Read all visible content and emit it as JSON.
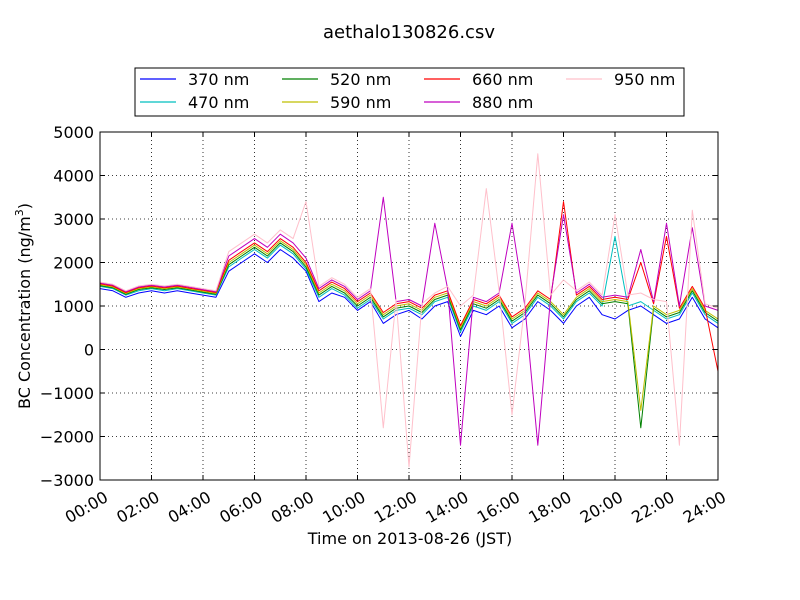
{
  "chart_data": {
    "type": "line",
    "title": "aethalo130826.csv",
    "xlabel": "Time on 2013-08-26 (JST)",
    "ylabel_main": "BC Concentration (ng/m",
    "ylabel_sup": "3",
    "ylabel_close": ")",
    "xlim": [
      "00:00",
      "24:00"
    ],
    "ylim": [
      -3000,
      5000
    ],
    "x_ticks": [
      "00:00",
      "02:00",
      "04:00",
      "06:00",
      "08:00",
      "10:00",
      "12:00",
      "14:00",
      "16:00",
      "18:00",
      "20:00",
      "22:00",
      "24:00"
    ],
    "y_ticks": [
      "−3000",
      "−2000",
      "−1000",
      "0",
      "1000",
      "2000",
      "3000",
      "4000",
      "5000"
    ],
    "grid": true,
    "legend_position": "top-center",
    "x_sample_hours": [
      0,
      0.5,
      1,
      1.5,
      2,
      2.5,
      3,
      3.5,
      4,
      4.5,
      5,
      5.5,
      6,
      6.5,
      7,
      7.5,
      8,
      8.5,
      9,
      9.5,
      10,
      10.5,
      11,
      11.5,
      12,
      12.5,
      13,
      13.5,
      14,
      14.5,
      15,
      15.5,
      16,
      16.5,
      17,
      17.5,
      18,
      18.5,
      19,
      19.5,
      20,
      20.5,
      21,
      21.5,
      22,
      22.5,
      23,
      23.5,
      24
    ],
    "series": [
      {
        "name": "370 nm",
        "color": "#0000ff",
        "values": [
          1400,
          1350,
          1200,
          1300,
          1350,
          1300,
          1350,
          1300,
          1250,
          1200,
          1800,
          2000,
          2200,
          2000,
          2300,
          2100,
          1800,
          1100,
          1300,
          1200,
          900,
          1100,
          600,
          800,
          900,
          700,
          1000,
          1100,
          300,
          900,
          800,
          1000,
          500,
          700,
          1100,
          900,
          600,
          1000,
          1200,
          800,
          700,
          900,
          1000,
          800,
          600,
          700,
          1200,
          700,
          500
        ]
      },
      {
        "name": "470 nm",
        "color": "#00bfbf",
        "values": [
          1450,
          1400,
          1250,
          1350,
          1400,
          1350,
          1400,
          1350,
          1300,
          1250,
          1900,
          2100,
          2300,
          2100,
          2400,
          2200,
          1850,
          1200,
          1400,
          1250,
          950,
          1150,
          700,
          900,
          950,
          800,
          1100,
          1200,
          400,
          1000,
          900,
          1100,
          600,
          800,
          1200,
          1000,
          700,
          1100,
          1300,
          1000,
          2600,
          1000,
          1100,
          900,
          700,
          800,
          1300,
          800,
          600
        ]
      },
      {
        "name": "520 nm",
        "color": "#008000",
        "values": [
          1470,
          1420,
          1270,
          1380,
          1420,
          1380,
          1420,
          1370,
          1320,
          1270,
          1950,
          2150,
          2350,
          2150,
          2450,
          2250,
          1900,
          1250,
          1450,
          1300,
          1000,
          1200,
          750,
          950,
          1000,
          850,
          1150,
          1250,
          450,
          1050,
          950,
          1150,
          650,
          850,
          1250,
          1050,
          750,
          1150,
          1350,
          1050,
          1100,
          1050,
          -1800,
          950,
          750,
          850,
          1350,
          850,
          650
        ]
      },
      {
        "name": "590 nm",
        "color": "#bfbf00",
        "values": [
          1490,
          1440,
          1290,
          1400,
          1440,
          1400,
          1440,
          1390,
          1340,
          1290,
          2000,
          2200,
          2400,
          2200,
          2500,
          2300,
          1950,
          1300,
          1500,
          1350,
          1050,
          1250,
          800,
          1000,
          1050,
          900,
          1200,
          1300,
          500,
          1100,
          1000,
          1200,
          700,
          900,
          1300,
          1100,
          800,
          1200,
          1400,
          1100,
          1150,
          1100,
          -1400,
          1000,
          800,
          900,
          1400,
          900,
          700
        ]
      },
      {
        "name": "660 nm",
        "color": "#ff0000",
        "values": [
          1510,
          1460,
          1310,
          1420,
          1460,
          1420,
          1460,
          1410,
          1360,
          1310,
          2050,
          2250,
          2450,
          2250,
          2550,
          2350,
          2000,
          1350,
          1550,
          1400,
          1100,
          1300,
          850,
          1050,
          1100,
          950,
          1250,
          1350,
          550,
          1150,
          1050,
          1250,
          750,
          950,
          1350,
          1150,
          3400,
          1250,
          1450,
          1150,
          1200,
          1150,
          2000,
          1050,
          2600,
          950,
          1450,
          950,
          -500
        ]
      },
      {
        "name": "880 nm",
        "color": "#bf00bf",
        "values": [
          1530,
          1480,
          1330,
          1440,
          1480,
          1440,
          1480,
          1430,
          1380,
          1330,
          2150,
          2350,
          2550,
          2350,
          2650,
          2450,
          2100,
          1400,
          1600,
          1450,
          1150,
          1350,
          3500,
          1100,
          1150,
          1000,
          2900,
          1400,
          -2200,
          1200,
          1100,
          1300,
          2900,
          1000,
          -2200,
          1200,
          3100,
          1300,
          1500,
          1200,
          1250,
          1200,
          2300,
          1100,
          2900,
          1000,
          2800,
          1000,
          900
        ]
      },
      {
        "name": "950 nm",
        "color": "#ffc0cb",
        "values": [
          1550,
          1500,
          1350,
          1460,
          1500,
          1460,
          1500,
          1450,
          1400,
          1350,
          2250,
          2450,
          2650,
          2450,
          2750,
          2550,
          3400,
          1450,
          1650,
          1500,
          1200,
          1400,
          -1800,
          1150,
          -2700,
          1050,
          1300,
          1450,
          1000,
          1250,
          3700,
          1350,
          -1500,
          1050,
          4500,
          1250,
          1600,
          1350,
          1550,
          1250,
          3100,
          1250,
          1300,
          1150,
          1100,
          -2200,
          3200,
          1050,
          950
        ]
      }
    ]
  }
}
